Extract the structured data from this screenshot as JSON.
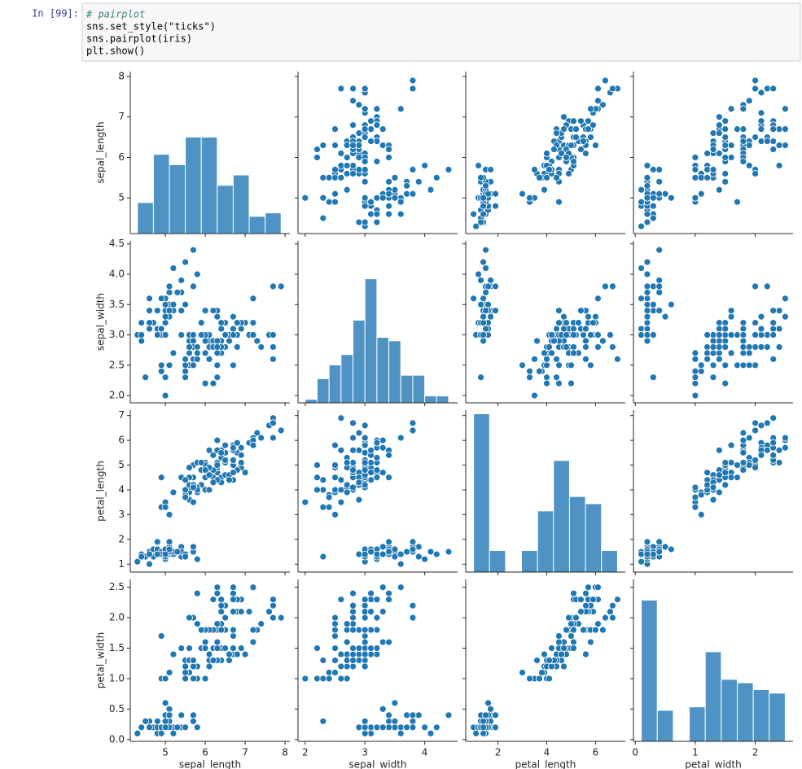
{
  "notebook": {
    "prompt": "In [99]:",
    "code": [
      "# pairplot",
      "sns.set_style(\"ticks\")",
      "sns.pairplot(iris)",
      "plt.show()"
    ]
  },
  "chart_data": {
    "type": "pairplot",
    "color": "#1f77b4",
    "hist_color": "#4f93c4",
    "variables": [
      {
        "name": "sepal_length",
        "lim": [
          4.12,
          8.12
        ],
        "xticks": [
          5,
          6,
          7,
          8
        ],
        "yticks": [
          5,
          6,
          7,
          8
        ],
        "hist": {
          "bins": [
            4.3,
            4.7,
            5.1,
            5.5,
            5.9,
            6.3,
            6.7,
            7.1,
            7.5,
            7.9
          ],
          "counts": [
            9,
            23,
            20,
            28,
            28,
            14,
            17,
            5,
            6
          ],
          "ylim": [
            0,
            47
          ]
        },
        "values": [
          5.1,
          4.9,
          4.7,
          4.6,
          5.0,
          5.4,
          4.6,
          5.0,
          4.4,
          4.9,
          5.4,
          4.8,
          4.8,
          4.3,
          5.8,
          5.7,
          5.4,
          5.1,
          5.7,
          5.1,
          5.4,
          5.1,
          4.6,
          5.1,
          4.8,
          5.0,
          5.0,
          5.2,
          5.2,
          4.7,
          4.8,
          5.4,
          5.2,
          5.5,
          4.9,
          5.0,
          5.5,
          4.9,
          4.4,
          5.1,
          5.0,
          4.5,
          4.4,
          5.0,
          5.1,
          4.8,
          5.1,
          4.6,
          5.3,
          5.0,
          7.0,
          6.4,
          6.9,
          5.5,
          6.5,
          5.7,
          6.3,
          4.9,
          6.6,
          5.2,
          5.0,
          5.9,
          6.0,
          6.1,
          5.6,
          6.7,
          5.6,
          5.8,
          6.2,
          5.6,
          5.9,
          6.1,
          6.3,
          6.1,
          6.4,
          6.6,
          6.8,
          6.7,
          6.0,
          5.7,
          5.5,
          5.5,
          5.8,
          6.0,
          5.4,
          6.0,
          6.7,
          6.3,
          5.6,
          5.5,
          5.5,
          6.1,
          5.8,
          5.0,
          5.6,
          5.7,
          5.7,
          6.2,
          5.1,
          5.7,
          6.3,
          5.8,
          7.1,
          6.3,
          6.5,
          7.6,
          4.9,
          7.3,
          6.7,
          7.2,
          6.5,
          6.4,
          6.8,
          5.7,
          5.8,
          6.4,
          6.5,
          7.7,
          7.7,
          6.0,
          6.9,
          5.6,
          7.7,
          6.3,
          6.7,
          7.2,
          6.2,
          6.1,
          6.4,
          7.2,
          7.4,
          7.9,
          6.4,
          6.3,
          6.1,
          7.7,
          6.3,
          6.4,
          6.0,
          6.9,
          6.7,
          6.9,
          5.8,
          6.8,
          6.7,
          6.7,
          6.3,
          6.5,
          6.2,
          5.9
        ]
      },
      {
        "name": "sepal_width",
        "lim": [
          1.88,
          4.55
        ],
        "xticks": [
          2,
          3,
          4
        ],
        "yticks": [
          {
            "value": 2.0,
            "label": "2.0"
          },
          {
            "value": 2.5,
            "label": "2.5"
          },
          {
            "value": 3.0,
            "label": "3.0"
          },
          {
            "value": 3.5,
            "label": "3.5"
          },
          {
            "value": 4.0,
            "label": "4.0"
          },
          {
            "value": 4.5,
            "label": "4.5"
          }
        ],
        "hist": {
          "bins": [
            2.0,
            2.2,
            2.4,
            2.6,
            2.8,
            3.0,
            3.2,
            3.4,
            3.6,
            3.8,
            4.0,
            4.2,
            4.4
          ],
          "counts": [
            1,
            7,
            11,
            14,
            24,
            36,
            19,
            18,
            8,
            8,
            2,
            2
          ],
          "ylim": [
            0,
            47
          ]
        },
        "values": [
          3.5,
          3.0,
          3.2,
          3.1,
          3.6,
          3.9,
          3.4,
          3.4,
          2.9,
          3.1,
          3.7,
          3.4,
          3.0,
          3.0,
          4.0,
          4.4,
          3.9,
          3.5,
          3.8,
          3.8,
          3.4,
          3.7,
          3.6,
          3.3,
          3.4,
          3.0,
          3.4,
          3.5,
          3.4,
          3.2,
          3.1,
          3.4,
          4.1,
          4.2,
          3.1,
          3.2,
          3.5,
          3.6,
          3.0,
          3.4,
          3.5,
          2.3,
          3.2,
          3.5,
          3.8,
          3.0,
          3.8,
          3.2,
          3.7,
          3.3,
          3.2,
          3.2,
          3.1,
          2.3,
          2.8,
          2.8,
          3.3,
          2.4,
          2.9,
          2.7,
          2.0,
          3.0,
          2.2,
          2.9,
          2.9,
          3.1,
          3.0,
          2.7,
          2.2,
          2.5,
          3.2,
          2.8,
          2.5,
          2.8,
          2.9,
          3.0,
          2.8,
          3.0,
          2.9,
          2.6,
          2.4,
          2.4,
          2.7,
          2.7,
          3.0,
          3.4,
          3.1,
          2.3,
          3.0,
          2.5,
          2.6,
          3.0,
          2.6,
          2.3,
          2.7,
          3.0,
          2.9,
          2.9,
          2.5,
          2.8,
          3.3,
          2.7,
          3.0,
          2.9,
          3.0,
          3.0,
          2.5,
          2.9,
          2.5,
          3.6,
          3.2,
          2.7,
          3.0,
          2.5,
          2.8,
          3.2,
          3.0,
          3.8,
          2.6,
          2.2,
          3.2,
          2.8,
          2.8,
          2.7,
          3.3,
          3.2,
          2.8,
          3.0,
          2.8,
          3.0,
          2.8,
          3.8,
          2.8,
          2.8,
          2.6,
          3.0,
          3.4,
          3.1,
          3.0,
          3.1,
          3.1,
          3.1,
          2.7,
          3.2,
          3.3,
          3.0,
          2.5,
          3.0,
          3.4,
          3.0
        ]
      },
      {
        "name": "petal_length",
        "lim": [
          0.68,
          7.22
        ],
        "xticks": [
          2,
          4,
          6
        ],
        "yticks": [
          1,
          2,
          3,
          4,
          5,
          6,
          7
        ],
        "hist": {
          "bins": [
            1.0,
            1.6556,
            2.3111,
            2.9667,
            3.6222,
            4.2778,
            4.9333,
            5.5889,
            6.2444,
            6.9
          ],
          "counts": [
            44,
            6,
            0,
            6,
            17,
            31,
            21,
            19,
            6
          ],
          "ylim": [
            0,
            45
          ]
        },
        "values": [
          1.4,
          1.4,
          1.3,
          1.5,
          1.4,
          1.7,
          1.4,
          1.5,
          1.4,
          1.5,
          1.5,
          1.6,
          1.4,
          1.1,
          1.2,
          1.5,
          1.3,
          1.4,
          1.7,
          1.5,
          1.7,
          1.5,
          1.0,
          1.7,
          1.9,
          1.6,
          1.6,
          1.5,
          1.4,
          1.6,
          1.6,
          1.5,
          1.5,
          1.4,
          1.5,
          1.2,
          1.3,
          1.4,
          1.3,
          1.5,
          1.3,
          1.3,
          1.3,
          1.6,
          1.9,
          1.4,
          1.6,
          1.4,
          1.5,
          1.4,
          4.7,
          4.5,
          4.9,
          4.0,
          4.6,
          4.5,
          4.7,
          3.3,
          4.6,
          3.9,
          3.5,
          4.2,
          4.0,
          4.7,
          3.6,
          4.4,
          4.5,
          4.1,
          4.5,
          3.9,
          4.8,
          4.0,
          4.9,
          4.7,
          4.3,
          4.4,
          4.8,
          5.0,
          4.5,
          3.5,
          3.8,
          3.7,
          3.9,
          5.1,
          4.5,
          4.5,
          4.7,
          4.4,
          4.1,
          4.0,
          4.4,
          4.6,
          4.0,
          3.3,
          4.2,
          4.2,
          4.2,
          4.3,
          3.0,
          4.1,
          6.0,
          5.1,
          5.9,
          5.6,
          5.8,
          6.6,
          4.5,
          6.3,
          5.8,
          6.1,
          5.1,
          5.3,
          5.5,
          5.0,
          5.1,
          5.3,
          5.5,
          6.7,
          6.9,
          5.0,
          5.7,
          4.9,
          6.7,
          4.9,
          5.7,
          6.0,
          4.8,
          4.9,
          5.6,
          5.8,
          6.1,
          6.4,
          5.6,
          5.1,
          5.6,
          6.1,
          5.6,
          5.5,
          4.8,
          5.4,
          5.6,
          5.1,
          5.1,
          5.9,
          5.7,
          5.2,
          5.0,
          5.2,
          5.4,
          5.1
        ]
      },
      {
        "name": "petal_width",
        "lim": [
          -0.03,
          2.63
        ],
        "xticks": [
          0,
          1,
          2
        ],
        "yticks": [
          {
            "value": 0.0,
            "label": "0.0"
          },
          {
            "value": 0.5,
            "label": "0.5"
          },
          {
            "value": 1.0,
            "label": "1.0"
          },
          {
            "value": 1.5,
            "label": "1.5"
          },
          {
            "value": 2.0,
            "label": "2.0"
          },
          {
            "value": 2.5,
            "label": "2.5"
          }
        ],
        "hist": {
          "bins": [
            0.1,
            0.3667,
            0.6333,
            0.9,
            1.1667,
            1.4333,
            1.7,
            1.9667,
            2.2333,
            2.5
          ],
          "counts": [
            41,
            9,
            0,
            10,
            26,
            18,
            17,
            15,
            14
          ],
          "ylim": [
            0,
            47
          ]
        },
        "values": [
          0.2,
          0.2,
          0.2,
          0.2,
          0.2,
          0.4,
          0.3,
          0.2,
          0.2,
          0.1,
          0.2,
          0.2,
          0.1,
          0.1,
          0.2,
          0.4,
          0.4,
          0.3,
          0.3,
          0.3,
          0.2,
          0.4,
          0.2,
          0.5,
          0.2,
          0.2,
          0.4,
          0.2,
          0.2,
          0.2,
          0.2,
          0.4,
          0.1,
          0.2,
          0.2,
          0.2,
          0.2,
          0.1,
          0.2,
          0.2,
          0.3,
          0.3,
          0.2,
          0.6,
          0.4,
          0.3,
          0.2,
          0.2,
          0.2,
          0.2,
          1.4,
          1.5,
          1.5,
          1.3,
          1.5,
          1.3,
          1.6,
          1.0,
          1.3,
          1.4,
          1.0,
          1.5,
          1.0,
          1.4,
          1.3,
          1.4,
          1.5,
          1.0,
          1.5,
          1.1,
          1.8,
          1.3,
          1.5,
          1.2,
          1.3,
          1.4,
          1.4,
          1.7,
          1.5,
          1.0,
          1.1,
          1.0,
          1.2,
          1.6,
          1.5,
          1.6,
          1.5,
          1.3,
          1.3,
          1.3,
          1.2,
          1.4,
          1.2,
          1.0,
          1.3,
          1.2,
          1.3,
          1.3,
          1.1,
          1.3,
          2.5,
          1.9,
          2.1,
          1.8,
          2.2,
          2.1,
          1.7,
          1.8,
          1.8,
          2.5,
          2.0,
          1.9,
          2.1,
          2.0,
          2.4,
          2.3,
          1.8,
          2.2,
          2.3,
          1.5,
          2.3,
          2.0,
          2.0,
          1.8,
          2.1,
          1.8,
          1.8,
          1.8,
          2.1,
          1.6,
          1.9,
          2.0,
          2.2,
          1.5,
          1.4,
          2.3,
          2.4,
          1.8,
          1.8,
          2.1,
          2.4,
          2.3,
          1.9,
          2.3,
          2.5,
          2.3,
          1.9,
          2.0,
          2.3,
          1.8
        ]
      }
    ]
  }
}
